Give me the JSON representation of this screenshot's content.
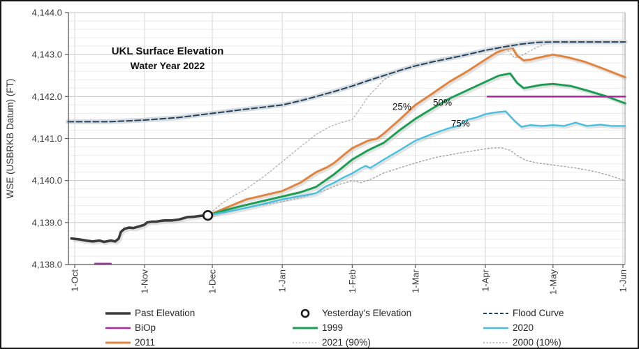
{
  "figure": {
    "background": "#ffffff",
    "border_color": "#151515"
  },
  "chart_data": {
    "type": "line",
    "title": "UKL Surface Elevation",
    "subtitle": "Water Year 2022",
    "ylabel": "WSE (USBRKB Datum) (FT)",
    "ylim": [
      4138.0,
      4144.0
    ],
    "y_major_step": 1.0,
    "y_minor_step": 0.2,
    "y_tick_labels": [
      "4,138.0",
      "4,139.0",
      "4,140.0",
      "4,141.0",
      "4,142.0",
      "4,143.0",
      "4,144.0"
    ],
    "x_ticks": [
      {
        "label": "1-Oct",
        "day": 0
      },
      {
        "label": "1-Nov",
        "day": 31
      },
      {
        "label": "1-Dec",
        "day": 61
      },
      {
        "label": "1-Jan",
        "day": 92
      },
      {
        "label": "1-Feb",
        "day": 123
      },
      {
        "label": "1-Mar",
        "day": 151
      },
      {
        "label": "1-Apr",
        "day": 182
      },
      {
        "label": "1-May",
        "day": 212
      },
      {
        "label": "1-Jun",
        "day": 243
      }
    ],
    "x_axis_days": 243,
    "grid": true,
    "annotations": [
      {
        "text": "25%",
        "day": 145,
        "value": 4141.75
      },
      {
        "text": "50%",
        "day": 163,
        "value": 4141.85
      },
      {
        "text": "75%",
        "day": 171,
        "value": 4141.35
      }
    ],
    "marker": {
      "name": "Yesterday's Elevation",
      "day": 59,
      "value": 4139.17,
      "stroke": "#1a1a1a",
      "fill": "#ffffff"
    },
    "series": [
      {
        "name": "2021 (90%)",
        "color": "#b5b5b5",
        "width": 1.4,
        "dash": "2 3",
        "shadow": false,
        "halo": false,
        "segments": [
          [
            [
              59,
              4139.17
            ],
            [
              65,
              4139.45
            ],
            [
              70,
              4139.62
            ],
            [
              76,
              4139.8
            ],
            [
              84,
              4140.1
            ],
            [
              92,
              4140.45
            ],
            [
              100,
              4140.8
            ],
            [
              107,
              4141.1
            ],
            [
              113,
              4141.28
            ],
            [
              118,
              4141.38
            ],
            [
              123,
              4141.45
            ],
            [
              127,
              4141.75
            ],
            [
              130,
              4142.0
            ],
            [
              134,
              4142.22
            ],
            [
              137,
              4142.4
            ],
            [
              144,
              4142.6
            ],
            [
              151,
              4142.78
            ],
            [
              158,
              4142.85
            ],
            [
              166,
              4142.95
            ],
            [
              174,
              4143.02
            ],
            [
              182,
              4143.1
            ],
            [
              188,
              4143.17
            ],
            [
              192,
              4143.1
            ],
            [
              195,
              4142.92
            ],
            [
              199,
              4143.0
            ],
            [
              204,
              4143.15
            ],
            [
              208,
              4143.24
            ],
            [
              212,
              4143.28
            ],
            [
              228,
              4143.3
            ],
            [
              244,
              4143.3
            ]
          ]
        ]
      },
      {
        "name": "2000 (10%)",
        "color": "#a3a3a3",
        "width": 1.4,
        "dash": "2 3",
        "shadow": false,
        "halo": false,
        "segments": [
          [
            [
              59,
              4139.17
            ],
            [
              68,
              4139.28
            ],
            [
              76,
              4139.35
            ],
            [
              92,
              4139.5
            ],
            [
              101,
              4139.6
            ],
            [
              110,
              4139.75
            ],
            [
              117,
              4139.9
            ],
            [
              123,
              4140.0
            ],
            [
              127,
              4139.95
            ],
            [
              132,
              4140.05
            ],
            [
              137,
              4140.18
            ],
            [
              144,
              4140.3
            ],
            [
              151,
              4140.42
            ],
            [
              160,
              4140.55
            ],
            [
              170,
              4140.65
            ],
            [
              178,
              4140.72
            ],
            [
              184,
              4140.77
            ],
            [
              189,
              4140.78
            ],
            [
              193,
              4140.72
            ],
            [
              196,
              4140.6
            ],
            [
              200,
              4140.48
            ],
            [
              205,
              4140.42
            ],
            [
              212,
              4140.37
            ],
            [
              222,
              4140.3
            ],
            [
              230,
              4140.22
            ],
            [
              237,
              4140.12
            ],
            [
              244,
              4140.0
            ]
          ]
        ]
      },
      {
        "name": "2011",
        "color": "#e08440",
        "width": 3,
        "dash": null,
        "shadow": true,
        "halo": false,
        "segments": [
          [
            [
              59,
              4139.17
            ],
            [
              67,
              4139.35
            ],
            [
              76,
              4139.55
            ],
            [
              84,
              4139.65
            ],
            [
              92,
              4139.75
            ],
            [
              100,
              4139.95
            ],
            [
              107,
              4140.2
            ],
            [
              112,
              4140.32
            ],
            [
              115,
              4140.42
            ],
            [
              119,
              4140.6
            ],
            [
              123,
              4140.77
            ],
            [
              130,
              4140.95
            ],
            [
              134,
              4141.0
            ],
            [
              137,
              4141.12
            ],
            [
              144,
              4141.45
            ],
            [
              151,
              4141.8
            ],
            [
              158,
              4142.05
            ],
            [
              166,
              4142.35
            ],
            [
              174,
              4142.6
            ],
            [
              182,
              4142.88
            ],
            [
              187,
              4143.05
            ],
            [
              191,
              4143.13
            ],
            [
              194,
              4143.16
            ],
            [
              196,
              4142.98
            ],
            [
              199,
              4142.86
            ],
            [
              202,
              4142.88
            ],
            [
              205,
              4142.92
            ],
            [
              212,
              4143.0
            ],
            [
              219,
              4142.93
            ],
            [
              226,
              4142.83
            ],
            [
              234,
              4142.67
            ],
            [
              244,
              4142.46
            ]
          ]
        ]
      },
      {
        "name": "1999",
        "color": "#1e9e55",
        "width": 3,
        "dash": null,
        "shadow": true,
        "halo": false,
        "segments": [
          [
            [
              59,
              4139.17
            ],
            [
              67,
              4139.3
            ],
            [
              76,
              4139.42
            ],
            [
              84,
              4139.52
            ],
            [
              92,
              4139.62
            ],
            [
              100,
              4139.72
            ],
            [
              107,
              4139.85
            ],
            [
              115,
              4140.15
            ],
            [
              123,
              4140.5
            ],
            [
              130,
              4140.72
            ],
            [
              137,
              4140.9
            ],
            [
              144,
              4141.2
            ],
            [
              151,
              4141.47
            ],
            [
              158,
              4141.7
            ],
            [
              166,
              4141.95
            ],
            [
              174,
              4142.15
            ],
            [
              182,
              4142.35
            ],
            [
              188,
              4142.5
            ],
            [
              193,
              4142.55
            ],
            [
              196,
              4142.33
            ],
            [
              199,
              4142.2
            ],
            [
              203,
              4142.24
            ],
            [
              207,
              4142.28
            ],
            [
              212,
              4142.3
            ],
            [
              220,
              4142.25
            ],
            [
              228,
              4142.13
            ],
            [
              236,
              4142.0
            ],
            [
              244,
              4141.84
            ]
          ]
        ]
      },
      {
        "name": "2020",
        "color": "#46bedf",
        "width": 2.4,
        "dash": null,
        "shadow": true,
        "halo": false,
        "segments": [
          [
            [
              59,
              4139.17
            ],
            [
              67,
              4139.25
            ],
            [
              76,
              4139.35
            ],
            [
              84,
              4139.45
            ],
            [
              92,
              4139.55
            ],
            [
              100,
              4139.63
            ],
            [
              107,
              4139.7
            ],
            [
              111,
              4139.85
            ],
            [
              115,
              4139.95
            ],
            [
              119,
              4140.07
            ],
            [
              123,
              4140.17
            ],
            [
              127,
              4140.3
            ],
            [
              129,
              4140.35
            ],
            [
              131,
              4140.3
            ],
            [
              137,
              4140.5
            ],
            [
              144,
              4140.72
            ],
            [
              151,
              4140.95
            ],
            [
              158,
              4141.1
            ],
            [
              166,
              4141.25
            ],
            [
              170,
              4141.3
            ],
            [
              174,
              4141.45
            ],
            [
              178,
              4141.5
            ],
            [
              182,
              4141.58
            ],
            [
              186,
              4141.62
            ],
            [
              191,
              4141.65
            ],
            [
              195,
              4141.42
            ],
            [
              198,
              4141.28
            ],
            [
              202,
              4141.32
            ],
            [
              207,
              4141.3
            ],
            [
              212,
              4141.32
            ],
            [
              217,
              4141.3
            ],
            [
              222,
              4141.38
            ],
            [
              227,
              4141.3
            ],
            [
              233,
              4141.33
            ],
            [
              238,
              4141.3
            ],
            [
              244,
              4141.3
            ]
          ]
        ]
      },
      {
        "name": "Flood Curve",
        "color": "#1f4261",
        "width": 2,
        "dash": "8 4",
        "shadow": false,
        "halo": true,
        "segments": [
          [
            [
              -3,
              4141.4
            ],
            [
              15,
              4141.4
            ],
            [
              31,
              4141.44
            ],
            [
              46,
              4141.5
            ],
            [
              61,
              4141.6
            ],
            [
              76,
              4141.7
            ],
            [
              92,
              4141.8
            ],
            [
              100,
              4141.9
            ],
            [
              107,
              4142.0
            ],
            [
              115,
              4142.12
            ],
            [
              123,
              4142.25
            ],
            [
              130,
              4142.38
            ],
            [
              137,
              4142.5
            ],
            [
              144,
              4142.62
            ],
            [
              151,
              4142.73
            ],
            [
              159,
              4142.83
            ],
            [
              167,
              4142.92
            ],
            [
              174,
              4143.0
            ],
            [
              182,
              4143.1
            ],
            [
              190,
              4143.18
            ],
            [
              198,
              4143.25
            ],
            [
              205,
              4143.29
            ],
            [
              212,
              4143.3
            ],
            [
              228,
              4143.3
            ],
            [
              244,
              4143.3
            ]
          ]
        ]
      },
      {
        "name": "BiOp",
        "color": "#ad28a5",
        "width": 2.6,
        "dash": null,
        "shadow": false,
        "halo": false,
        "segments": [
          [
            [
              9,
              4138.02
            ],
            [
              16,
              4138.02
            ]
          ],
          [
            [
              183,
              4142.0
            ],
            [
              244,
              4142.0
            ]
          ]
        ]
      },
      {
        "name": "Past Elevation",
        "color": "#3b3b3b",
        "width": 3.6,
        "dash": null,
        "shadow": true,
        "halo": false,
        "segments": [
          [
            [
              -1.5,
              4138.62
            ],
            [
              2,
              4138.6
            ],
            [
              5,
              4138.57
            ],
            [
              8,
              4138.55
            ],
            [
              11,
              4138.57
            ],
            [
              13,
              4138.54
            ],
            [
              16,
              4138.57
            ],
            [
              18,
              4138.55
            ],
            [
              19.5,
              4138.62
            ],
            [
              20.5,
              4138.78
            ],
            [
              22,
              4138.85
            ],
            [
              24,
              4138.88
            ],
            [
              26,
              4138.87
            ],
            [
              28,
              4138.9
            ],
            [
              30,
              4138.93
            ],
            [
              31,
              4138.95
            ],
            [
              32,
              4139.0
            ],
            [
              34,
              4139.02
            ],
            [
              36,
              4139.02
            ],
            [
              38,
              4139.04
            ],
            [
              40,
              4139.05
            ],
            [
              43,
              4139.05
            ],
            [
              46,
              4139.07
            ],
            [
              48,
              4139.1
            ],
            [
              50,
              4139.13
            ],
            [
              53,
              4139.14
            ],
            [
              56,
              4139.16
            ],
            [
              59,
              4139.17
            ]
          ]
        ]
      }
    ]
  },
  "legend": {
    "columns": [
      {
        "items": [
          {
            "label": "Past Elevation",
            "ref": "Past Elevation",
            "swatch": "line"
          },
          {
            "label": "BiOp",
            "ref": "BiOp",
            "swatch": "line"
          },
          {
            "label": "2011",
            "ref": "2011",
            "swatch": "line"
          }
        ]
      },
      {
        "items": [
          {
            "label": "Yesterday's Elevation",
            "ref": "marker",
            "swatch": "circle"
          },
          {
            "label": "1999",
            "ref": "1999",
            "swatch": "line"
          },
          {
            "label": "2021 (90%)",
            "ref": "2021 (90%)",
            "swatch": "line"
          }
        ]
      },
      {
        "items": [
          {
            "label": "Flood Curve",
            "ref": "Flood Curve",
            "swatch": "line"
          },
          {
            "label": "2020",
            "ref": "2020",
            "swatch": "line"
          },
          {
            "label": "2000 (10%)",
            "ref": "2000 (10%)",
            "swatch": "line"
          }
        ]
      }
    ]
  }
}
